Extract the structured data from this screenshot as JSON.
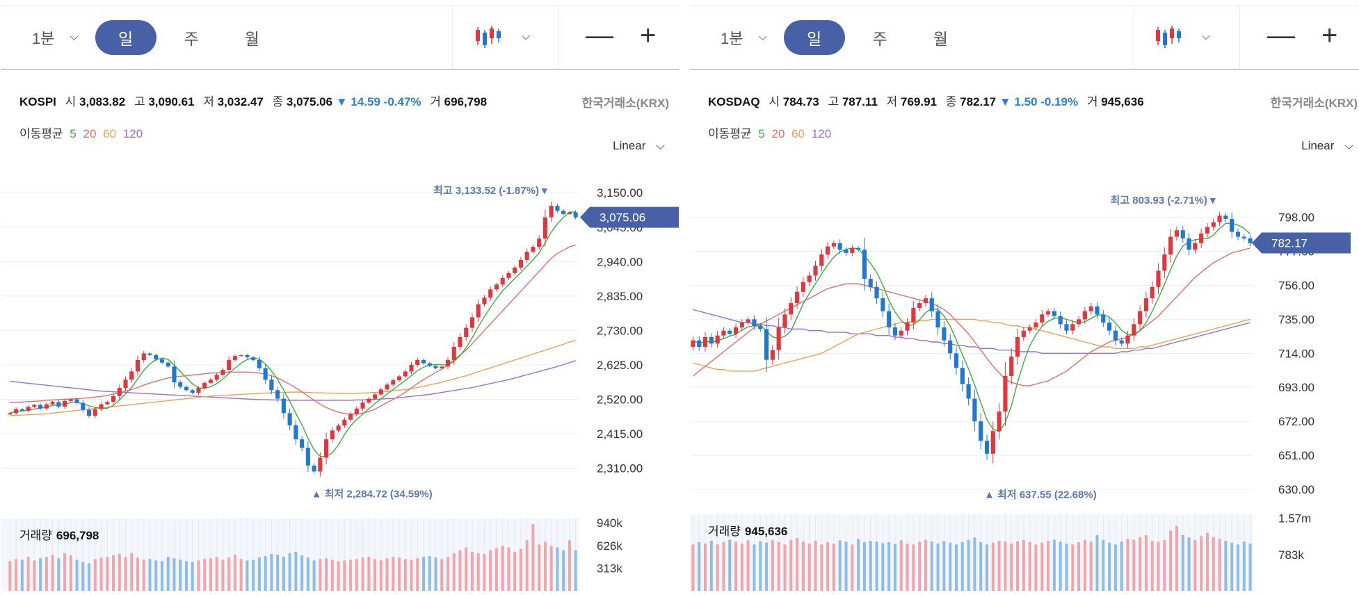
{
  "colors": {
    "accent": "#4860a6",
    "up": "#e0363d",
    "down": "#1f78d1",
    "ma5": "#3cae3c",
    "ma20": "#ea6a6a",
    "ma60": "#f0a050",
    "ma120": "#9b6ce0",
    "grid": "#eeeeee",
    "vol_up": "#f1a4a9",
    "vol_down": "#8cbcec"
  },
  "panels": [
    {
      "timeframes": {
        "minute": "1분",
        "day": "일",
        "week": "주",
        "month": "월"
      },
      "icons": {
        "chart_type": "candlestick-icon",
        "dropdown": "chevron-down-icon",
        "zoom_out": "minus-icon",
        "zoom_in": "plus-icon"
      },
      "symbol": "KOSPI",
      "open_label": "시",
      "open": "3,083.82",
      "high_label": "고",
      "high": "3,090.61",
      "low_label": "저",
      "low": "3,032.47",
      "close_label": "종",
      "close": "3,075.06",
      "change": "▼ 14.59",
      "change_pct": "-0.47%",
      "volume_label": "거",
      "volume": "696,798",
      "exchange": "한국거래소(KRX)",
      "ma_label": "이동평균",
      "ma5": "5",
      "ma20": "20",
      "ma60": "60",
      "ma120": "120",
      "scale": "Linear",
      "vol_title": "거래량",
      "vol_value": "696,798",
      "chart_data": {
        "type": "candlestick",
        "y_ticks": [
          2310,
          2415,
          2520,
          2625,
          2730,
          2835,
          2940,
          3045,
          3150
        ],
        "y_tick_labels": [
          "2,310.00",
          "2,415.00",
          "2,520.00",
          "2,625.00",
          "2,730.00",
          "2,835.00",
          "2,940.00",
          "3,045.00",
          "3,150.00"
        ],
        "ylim": [
          2271,
          3195
        ],
        "last_price": 3075.06,
        "last_price_label": "3,075.06",
        "max_label": "최고 3,133.52 (-1.87%)",
        "max_value": 3133.52,
        "min_label": "최저 2,284.72 (34.59%)",
        "min_value": 2284.72,
        "closes": [
          2478,
          2490,
          2485,
          2497,
          2503,
          2492,
          2505,
          2512,
          2498,
          2515,
          2520,
          2509,
          2488,
          2470,
          2490,
          2505,
          2512,
          2530,
          2555,
          2580,
          2605,
          2640,
          2660,
          2655,
          2642,
          2632,
          2620,
          2572,
          2558,
          2548,
          2540,
          2555,
          2570,
          2580,
          2595,
          2610,
          2640,
          2652,
          2655,
          2648,
          2640,
          2615,
          2580,
          2548,
          2522,
          2478,
          2441,
          2398,
          2372,
          2318,
          2300,
          2342,
          2398,
          2425,
          2440,
          2458,
          2475,
          2492,
          2510,
          2522,
          2535,
          2550,
          2565,
          2578,
          2590,
          2605,
          2625,
          2640,
          2630,
          2622,
          2615,
          2620,
          2640,
          2680,
          2710,
          2738,
          2770,
          2810,
          2830,
          2855,
          2870,
          2890,
          2905,
          2922,
          2945,
          2970,
          2985,
          3010,
          3075,
          3110,
          3095,
          3085,
          3090,
          3075
        ],
        "volumes": [
          410,
          440,
          430,
          470,
          420,
          450,
          470,
          500,
          450,
          520,
          490,
          430,
          400,
          380,
          440,
          460,
          470,
          490,
          510,
          470,
          520,
          460,
          430,
          440,
          420,
          410,
          470,
          450,
          430,
          410,
          400,
          420,
          440,
          450,
          470,
          430,
          460,
          500,
          440,
          420,
          430,
          460,
          480,
          510,
          500,
          470,
          520,
          540,
          490,
          460,
          420,
          440,
          450,
          430,
          410,
          420,
          430,
          440,
          460,
          470,
          440,
          420,
          450,
          470,
          460,
          440,
          430,
          450,
          470,
          480,
          460,
          440,
          470,
          520,
          560,
          600,
          540,
          520,
          510,
          560,
          590,
          620,
          600,
          540,
          580,
          700,
          920,
          640,
          680,
          620,
          600,
          560,
          700,
          560
        ],
        "ma20": [
          2510,
          2511,
          2512,
          2513,
          2514,
          2515,
          2517,
          2518,
          2519,
          2520,
          2521,
          2522,
          2523,
          2525,
          2527,
          2529,
          2532,
          2536,
          2540,
          2545,
          2550,
          2556,
          2563,
          2570,
          2575,
          2580,
          2585,
          2588,
          2590,
          2592,
          2594,
          2596,
          2598,
          2600,
          2601,
          2602,
          2603,
          2603,
          2603,
          2603,
          2602,
          2600,
          2597,
          2592,
          2585,
          2576,
          2566,
          2555,
          2543,
          2530,
          2517,
          2505,
          2495,
          2487,
          2481,
          2477,
          2475,
          2475,
          2478,
          2483,
          2490,
          2500,
          2510,
          2520,
          2530,
          2542,
          2555,
          2568,
          2580,
          2591,
          2602,
          2612,
          2625,
          2640,
          2655,
          2670,
          2690,
          2710,
          2730,
          2750,
          2770,
          2790,
          2810,
          2830,
          2850,
          2870,
          2890,
          2910,
          2930,
          2950,
          2965,
          2975,
          2985,
          2990
        ],
        "ma60": [
          2470,
          2471,
          2472,
          2473,
          2474,
          2475,
          2476,
          2478,
          2480,
          2482,
          2484,
          2486,
          2488,
          2490,
          2492,
          2494,
          2496,
          2498,
          2500,
          2502,
          2504,
          2506,
          2508,
          2510,
          2512,
          2514,
          2516,
          2518,
          2520,
          2522,
          2524,
          2526,
          2528,
          2530,
          2531,
          2532,
          2533,
          2534,
          2535,
          2536,
          2537,
          2538,
          2539,
          2540,
          2541,
          2541,
          2542,
          2542,
          2542,
          2541,
          2540,
          2540,
          2539,
          2539,
          2538,
          2538,
          2538,
          2538,
          2539,
          2540,
          2541,
          2542,
          2544,
          2546,
          2548,
          2550,
          2553,
          2556,
          2560,
          2564,
          2568,
          2572,
          2577,
          2582,
          2587,
          2592,
          2598,
          2604,
          2610,
          2616,
          2622,
          2628,
          2634,
          2640,
          2646,
          2652,
          2658,
          2664,
          2670,
          2676,
          2682,
          2688,
          2695,
          2700
        ],
        "ma120": [
          2575,
          2573,
          2571,
          2569,
          2567,
          2565,
          2563,
          2561,
          2559,
          2557,
          2555,
          2553,
          2551,
          2549,
          2547,
          2545,
          2544,
          2543,
          2542,
          2541,
          2540,
          2539,
          2538,
          2537,
          2536,
          2535,
          2534,
          2533,
          2532,
          2531,
          2530,
          2529,
          2528,
          2527,
          2526,
          2525,
          2524,
          2523,
          2522,
          2521,
          2520,
          2519,
          2519,
          2518,
          2518,
          2518,
          2517,
          2517,
          2517,
          2517,
          2517,
          2517,
          2517,
          2517,
          2517,
          2517,
          2517,
          2518,
          2518,
          2519,
          2520,
          2521,
          2522,
          2523,
          2525,
          2527,
          2529,
          2531,
          2533,
          2535,
          2538,
          2541,
          2544,
          2547,
          2550,
          2553,
          2556,
          2560,
          2564,
          2568,
          2572,
          2576,
          2580,
          2585,
          2590,
          2595,
          2600,
          2605,
          2610,
          2615,
          2620,
          2626,
          2632,
          2638
        ],
        "vol_ticks": [
          "940k",
          "626k",
          "313k"
        ],
        "vol_tick_values": [
          940,
          626,
          313
        ],
        "vol_max": 1000
      }
    },
    {
      "timeframes": {
        "minute": "1분",
        "day": "일",
        "week": "주",
        "month": "월"
      },
      "icons": {
        "chart_type": "candlestick-icon",
        "dropdown": "chevron-down-icon",
        "zoom_out": "minus-icon",
        "zoom_in": "plus-icon"
      },
      "symbol": "KOSDAQ",
      "open_label": "시",
      "open": "784.73",
      "high_label": "고",
      "high": "787.11",
      "low_label": "저",
      "low": "769.91",
      "close_label": "종",
      "close": "782.17",
      "change": "▼ 1.50",
      "change_pct": "-0.19%",
      "volume_label": "거",
      "volume": "945,636",
      "exchange": "한국거래소(KRX)",
      "ma_label": "이동평균",
      "ma5": "5",
      "ma20": "20",
      "ma60": "60",
      "ma120": "120",
      "scale": "Linear",
      "vol_title": "거래량",
      "vol_value": "945,636",
      "chart_data": {
        "type": "candlestick",
        "y_ticks": [
          630,
          651,
          672,
          693,
          714,
          735,
          756,
          777,
          798
        ],
        "y_tick_labels": [
          "630.00",
          "651.00",
          "672.00",
          "693.00",
          "714.00",
          "735.00",
          "756.00",
          "777.00",
          "798.00"
        ],
        "ylim": [
          624,
          812
        ],
        "last_price": 782.17,
        "last_price_label": "782.17",
        "max_label": "최고 803.93 (-2.71%)",
        "max_value": 803.93,
        "min_label": "최저 637.55 (22.68%)",
        "min_value": 637.55,
        "closes": [
          722,
          718,
          724,
          720,
          725,
          728,
          726,
          730,
          733,
          735,
          731,
          729,
          710,
          716,
          730,
          738,
          745,
          752,
          758,
          762,
          768,
          775,
          780,
          782,
          778,
          776,
          779,
          778,
          760,
          755,
          748,
          740,
          730,
          725,
          728,
          733,
          742,
          745,
          748,
          740,
          730,
          722,
          714,
          705,
          695,
          686,
          672,
          660,
          652,
          666,
          678,
          700,
          712,
          724,
          728,
          730,
          733,
          738,
          740,
          737,
          732,
          728,
          732,
          735,
          740,
          743,
          738,
          733,
          728,
          722,
          720,
          725,
          732,
          740,
          748,
          755,
          765,
          775,
          786,
          790,
          785,
          778,
          782,
          788,
          792,
          795,
          799,
          797,
          789,
          786,
          785,
          782
        ],
        "volumes": [
          1000,
          1050,
          1020,
          1080,
          1000,
          1050,
          1100,
          1060,
          1020,
          1090,
          1000,
          1070,
          1040,
          1090,
          1050,
          1000,
          1100,
          1140,
          1060,
          1020,
          1080,
          1000,
          1050,
          1020,
          1090,
          1060,
          1000,
          1120,
          1050,
          1080,
          1060,
          1030,
          1050,
          1010,
          1090,
          1020,
          1000,
          1060,
          1100,
          1060,
          1020,
          1070,
          1040,
          1000,
          1050,
          1100,
          1150,
          1050,
          1000,
          1040,
          1080,
          1060,
          1020,
          1070,
          1100,
          1050,
          1000,
          1040,
          1080,
          1100,
          1060,
          1020,
          1000,
          1050,
          1100,
          1060,
          1200,
          1100,
          1040,
          1000,
          1060,
          1120,
          1100,
          1160,
          1200,
          1080,
          1060,
          1100,
          1300,
          1400,
          1200,
          1150,
          1100,
          1180,
          1250,
          1160,
          1120,
          1080,
          1040,
          1000,
          1060,
          1020
        ],
        "ma20": [
          700,
          703,
          706,
          709,
          712,
          715,
          718,
          721,
          724,
          727,
          730,
          732,
          734,
          736,
          738,
          740,
          742,
          744,
          746,
          748,
          750,
          752,
          754,
          755,
          756,
          757,
          757,
          757,
          756,
          755,
          754,
          753,
          752,
          751,
          750,
          749,
          748,
          747,
          746,
          745,
          743,
          741,
          738,
          734,
          730,
          726,
          721,
          716,
          711,
          706,
          702,
          698,
          696,
          695,
          694,
          694,
          695,
          696,
          697,
          699,
          701,
          703,
          706,
          709,
          712,
          715,
          717,
          719,
          721,
          722,
          723,
          724,
          726,
          728,
          731,
          734,
          737,
          741,
          745,
          749,
          753,
          757,
          761,
          764,
          767,
          770,
          772,
          774,
          776,
          777,
          778,
          779
        ],
        "ma60": [
          708,
          707,
          706,
          705,
          704,
          704,
          703,
          703,
          703,
          703,
          703,
          704,
          705,
          706,
          707,
          708,
          709,
          710,
          711,
          712,
          713,
          714,
          716,
          718,
          720,
          722,
          724,
          726,
          727,
          728,
          729,
          730,
          731,
          732,
          733,
          733,
          734,
          734,
          734,
          735,
          735,
          735,
          735,
          735,
          735,
          735,
          735,
          734,
          734,
          733,
          733,
          732,
          731,
          731,
          730,
          730,
          729,
          728,
          727,
          726,
          725,
          724,
          723,
          722,
          721,
          720,
          719,
          718,
          718,
          717,
          717,
          717,
          717,
          718,
          718,
          719,
          720,
          721,
          722,
          723,
          724,
          725,
          726,
          727,
          728,
          729,
          730,
          731,
          732,
          733,
          734,
          735
        ],
        "ma120": [
          741,
          740,
          739,
          738,
          737,
          736,
          735,
          734,
          733,
          733,
          732,
          732,
          731,
          731,
          730,
          730,
          729,
          729,
          729,
          728,
          728,
          728,
          727,
          727,
          727,
          727,
          726,
          726,
          726,
          726,
          725,
          725,
          725,
          724,
          724,
          723,
          723,
          722,
          722,
          721,
          721,
          720,
          720,
          719,
          719,
          718,
          718,
          717,
          717,
          717,
          716,
          716,
          716,
          715,
          715,
          715,
          715,
          714,
          714,
          714,
          714,
          714,
          714,
          714,
          714,
          714,
          714,
          714,
          714,
          714,
          715,
          715,
          716,
          716,
          717,
          717,
          718,
          719,
          720,
          721,
          722,
          723,
          724,
          725,
          726,
          727,
          728,
          729,
          730,
          731,
          732,
          733
        ],
        "vol_ticks": [
          "1.57m",
          "783k"
        ],
        "vol_tick_values": [
          1570,
          783
        ],
        "vol_max": 1650
      }
    }
  ]
}
